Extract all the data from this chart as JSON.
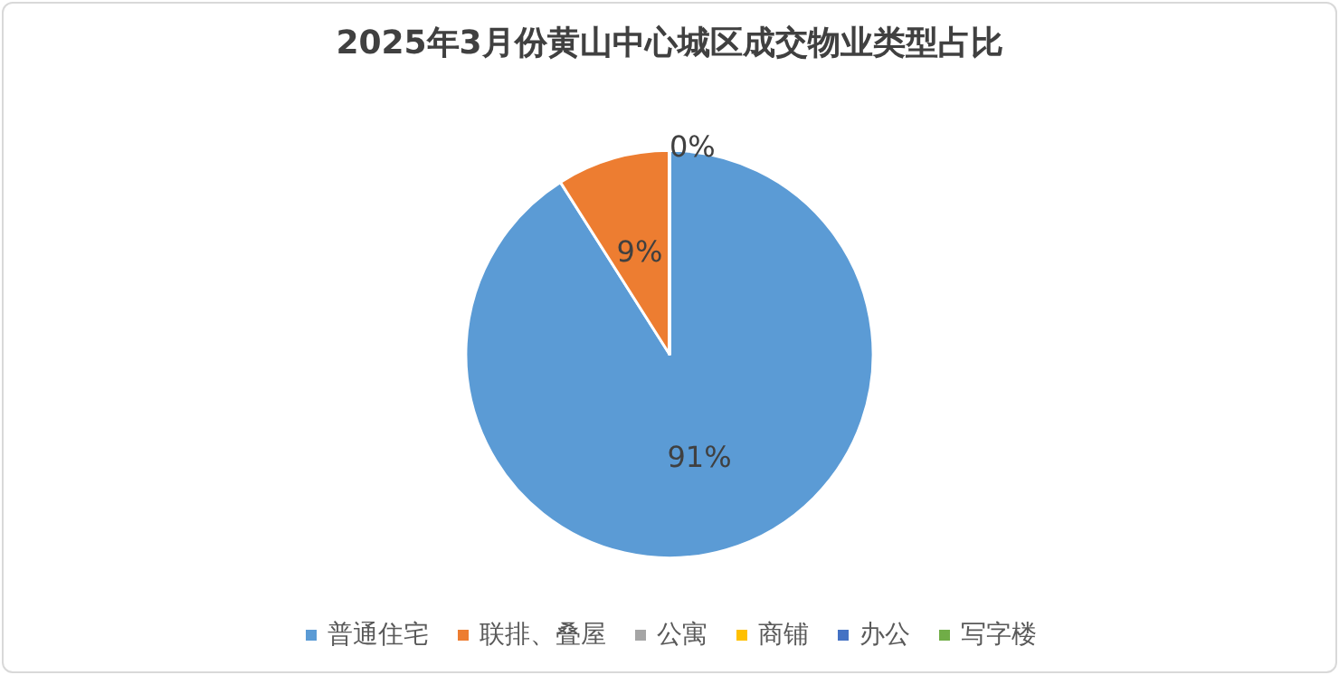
{
  "chart_data": {
    "type": "pie",
    "title": "2025年3月份黄山中心城区成交物业类型占比",
    "categories": [
      "普通住宅",
      "联排、叠屋",
      "公寓",
      "商铺",
      "办公",
      "写字楼"
    ],
    "values": [
      91,
      9,
      0,
      0,
      0,
      0
    ],
    "value_labels": [
      "91%",
      "9%",
      "0%",
      null,
      null,
      null
    ],
    "colors": [
      "#5b9bd5",
      "#ed7d31",
      "#a5a5a5",
      "#ffc000",
      "#4472c4",
      "#70ad47"
    ],
    "legend": "bottom"
  }
}
